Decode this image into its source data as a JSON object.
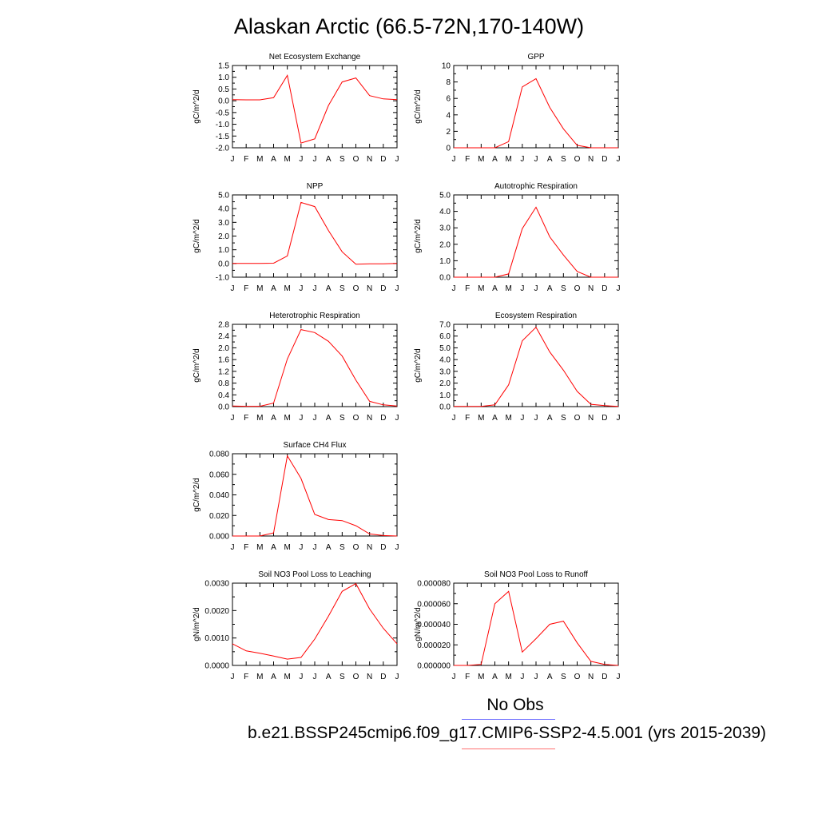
{
  "title": "Alaskan Arctic (66.5-72N,170-140W)",
  "months": [
    "J",
    "F",
    "M",
    "A",
    "M",
    "J",
    "J",
    "A",
    "S",
    "O",
    "N",
    "D",
    "J"
  ],
  "legend": {
    "obs_label": "No Obs",
    "obs_color": "#6b6bff",
    "run_label": "b.e21.BSSP245cmip6.f09_g17.CMIP6-SSP2-4.5.001 (yrs 2015-2039)",
    "run_color": "#ff0000"
  },
  "chart_data": [
    {
      "type": "line",
      "title": "Net Ecosystem Exchange",
      "ylabel": "gC/m^2/d",
      "ylim": [
        -2.0,
        1.5
      ],
      "yticks": [
        "-2.0",
        "-1.5",
        "-1.0",
        "-0.5",
        "0.0",
        "0.5",
        "1.0",
        "1.5"
      ],
      "values": [
        0.05,
        0.04,
        0.04,
        0.13,
        1.08,
        -1.8,
        -1.62,
        -0.2,
        0.8,
        0.97,
        0.22,
        0.08,
        0.05
      ]
    },
    {
      "type": "line",
      "title": "GPP",
      "ylabel": "gC/m^2/d",
      "ylim": [
        0,
        10
      ],
      "yticks": [
        "0",
        "2",
        "4",
        "6",
        "8",
        "10"
      ],
      "values": [
        0,
        0,
        0,
        0,
        0.75,
        7.4,
        8.4,
        4.9,
        2.3,
        0.3,
        0,
        0,
        0
      ]
    },
    {
      "type": "line",
      "title": "NPP",
      "ylabel": "gC/m^2/d",
      "ylim": [
        -1.0,
        5.0
      ],
      "yticks": [
        "-1.0",
        "0.0",
        "1.0",
        "2.0",
        "3.0",
        "4.0",
        "5.0"
      ],
      "values": [
        0,
        0,
        0,
        0.02,
        0.55,
        4.45,
        4.15,
        2.4,
        0.85,
        -0.05,
        -0.03,
        -0.02,
        0
      ]
    },
    {
      "type": "line",
      "title": "Autotrophic Respiration",
      "ylabel": "gC/m^2/d",
      "ylim": [
        0,
        5.0
      ],
      "yticks": [
        "0.0",
        "1.0",
        "2.0",
        "3.0",
        "4.0",
        "5.0"
      ],
      "values": [
        0,
        0,
        0,
        0,
        0.2,
        2.95,
        4.25,
        2.45,
        1.35,
        0.35,
        0,
        0,
        0
      ]
    },
    {
      "type": "line",
      "title": "Heterotrophic Respiration",
      "ylabel": "gC/m^2/d",
      "ylim": [
        0,
        2.8
      ],
      "yticks": [
        "0.0",
        "0.4",
        "0.8",
        "1.2",
        "1.6",
        "2.0",
        "2.4",
        "2.8"
      ],
      "values": [
        0.02,
        0.01,
        0.01,
        0.12,
        1.62,
        2.62,
        2.52,
        2.22,
        1.72,
        0.9,
        0.18,
        0.06,
        0.02
      ]
    },
    {
      "type": "line",
      "title": "Ecosystem Respiration",
      "ylabel": "gC/m^2/d",
      "ylim": [
        0,
        7.0
      ],
      "yticks": [
        "0.0",
        "1.0",
        "2.0",
        "3.0",
        "4.0",
        "5.0",
        "6.0",
        "7.0"
      ],
      "values": [
        0.02,
        0.02,
        0.02,
        0.15,
        1.85,
        5.6,
        6.75,
        4.65,
        3.1,
        1.3,
        0.2,
        0.08,
        0.02
      ]
    },
    {
      "type": "line",
      "title": "Surface CH4 Flux",
      "ylabel": "gC/m^2/d",
      "ylim": [
        0,
        0.08
      ],
      "yticks": [
        "0.000",
        "0.020",
        "0.040",
        "0.060",
        "0.080"
      ],
      "values": [
        0,
        0,
        0,
        0.003,
        0.078,
        0.056,
        0.021,
        0.016,
        0.015,
        0.01,
        0.002,
        0.0005,
        0
      ]
    },
    {
      "type": "line",
      "title": "Soil NO3 Pool Loss to Leaching",
      "ylabel": "gN/m^2/d",
      "ylim": [
        0,
        0.0035
      ],
      "yticks": [
        "0.0000",
        "0.0010",
        "0.0020",
        "0.0030"
      ],
      "values": [
        0.00092,
        0.00062,
        0.00052,
        0.0004,
        0.00027,
        0.00034,
        0.00112,
        0.0021,
        0.00315,
        0.00348,
        0.0024,
        0.00158,
        0.00092
      ]
    },
    {
      "type": "line",
      "title": "Soil NO3 Pool Loss to Runoff",
      "ylabel": "gN/m^2/d",
      "ylim": [
        0,
        8e-05
      ],
      "yticks": [
        "0.000000",
        "0.000020",
        "0.000040",
        "0.000060",
        "0.000080"
      ],
      "values": [
        0,
        0,
        1e-06,
        6e-05,
        7.2e-05,
        1.3e-05,
        2.6e-05,
        4e-05,
        4.3e-05,
        2.2e-05,
        4e-06,
        1e-06,
        0
      ]
    }
  ]
}
